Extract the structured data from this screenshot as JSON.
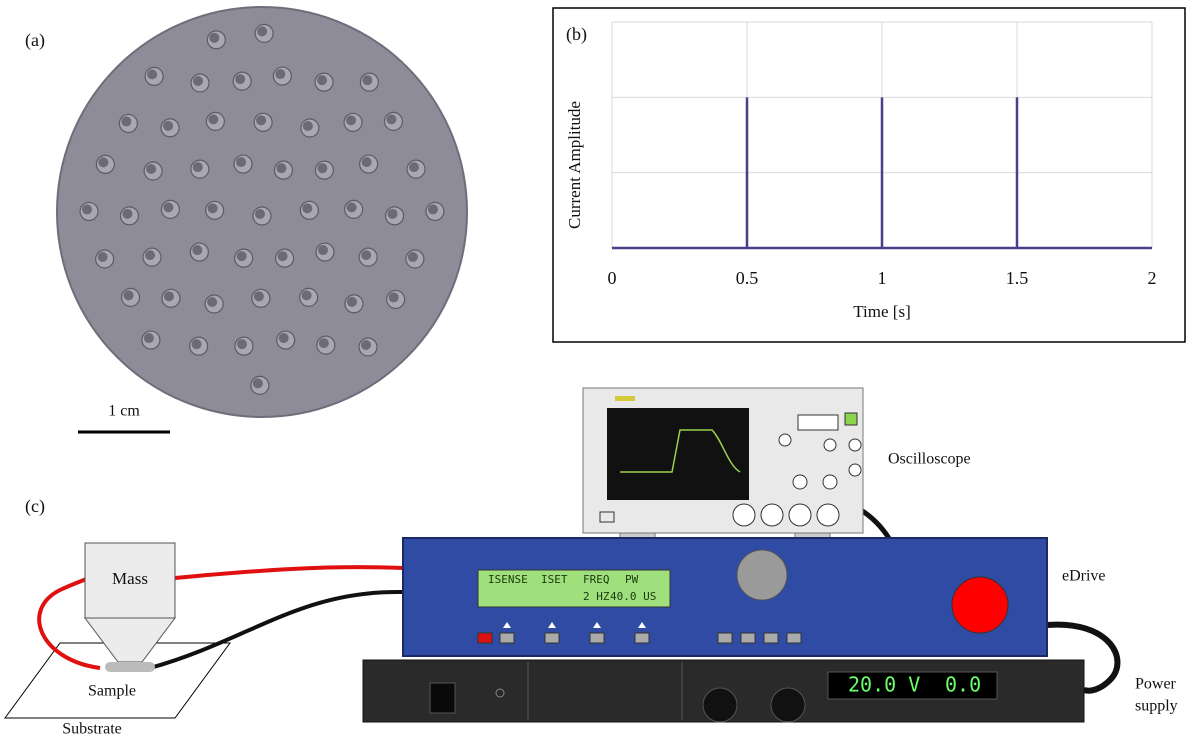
{
  "panel_a": {
    "label": "(a)",
    "scale_bar": "1 cm"
  },
  "panel_b": {
    "label": "(b)"
  },
  "chart_data": {
    "type": "line",
    "x_label": "Time [s]",
    "y_label": "Current Amplitude",
    "x": [
      0,
      0.5,
      0.5,
      0.5,
      1,
      1,
      1,
      1.5,
      1.5,
      1.5,
      2
    ],
    "series": [
      {
        "color": "#4b3f8c",
        "values": [
          0,
          0,
          2,
          0,
          0,
          2,
          0,
          0,
          2,
          0,
          0
        ]
      }
    ],
    "xlim": [
      0,
      2
    ],
    "ylim": [
      0,
      3
    ],
    "xticks": [
      0,
      0.5,
      1,
      1.5,
      2
    ],
    "yticks": [
      0,
      1,
      2,
      3
    ],
    "grid": true
  },
  "panel_c": {
    "label": "(c)",
    "mass": "Mass",
    "sample": "Sample",
    "substrate": "Substrate",
    "oscilloscope": "Oscilloscope",
    "edrive": "eDrive",
    "power_supply": [
      "Power",
      "supply"
    ],
    "edrive_display": [
      "ISENSE",
      "ISET",
      "FREQ",
      "PW",
      "2 HZ",
      "40.0 US"
    ],
    "power_display": [
      "20.0 V",
      "0.0"
    ]
  }
}
